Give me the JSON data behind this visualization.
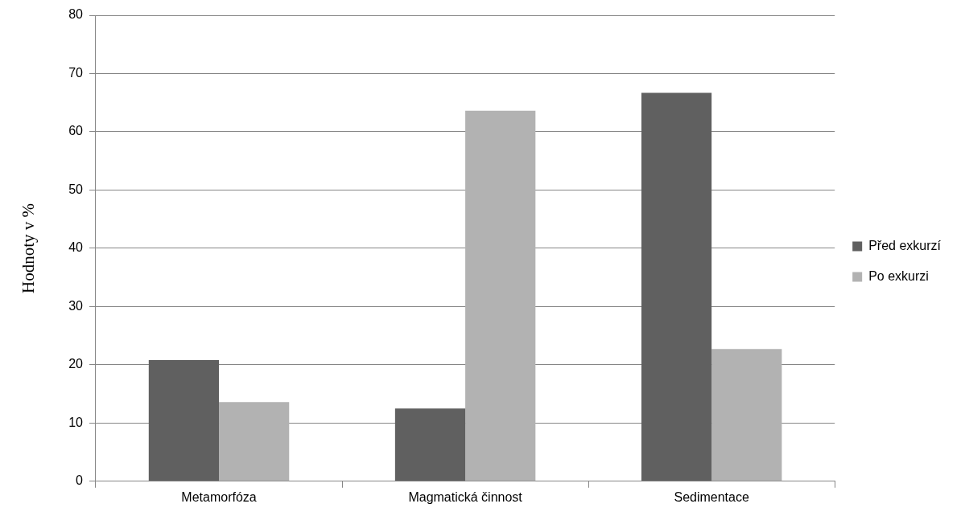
{
  "chart_data": {
    "type": "bar",
    "ylabel": "Hodnoty v %",
    "categories": [
      "Metamorfóza",
      "Magmatická činnost",
      "Sedimentace"
    ],
    "series": [
      {
        "name": "Před exkurzí",
        "color": "#606060",
        "values": [
          20.8,
          12.5,
          66.7
        ]
      },
      {
        "name": "Po exkurzi",
        "color": "#b2b2b2",
        "values": [
          13.6,
          63.6,
          22.7
        ]
      }
    ],
    "ylim": [
      0,
      80
    ],
    "yticks": [
      0,
      10,
      20,
      30,
      40,
      50,
      60,
      70,
      80
    ],
    "grid": "y",
    "legend": "right"
  }
}
